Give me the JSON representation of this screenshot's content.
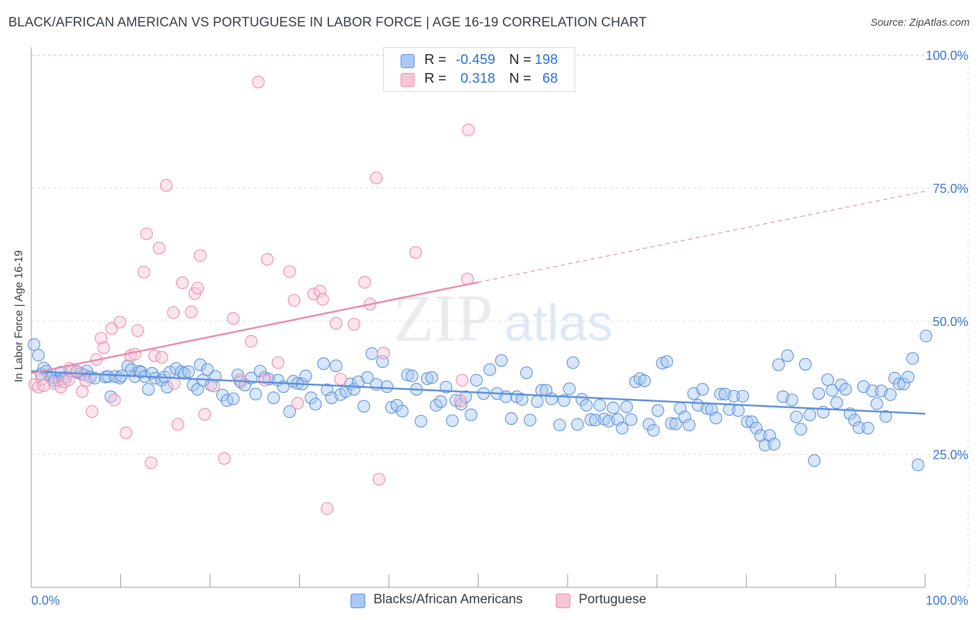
{
  "title": "BLACK/AFRICAN AMERICAN VS PORTUGUESE IN LABOR FORCE | AGE 16-19 CORRELATION CHART",
  "source": "Source: ZipAtlas.com",
  "watermark": {
    "zip": "ZIP",
    "atlas": "atlas"
  },
  "stats": [
    {
      "r_label": "R =",
      "r_value": "-0.459",
      "n_label": "N =",
      "n_value": "198",
      "color": "#5b8fd8"
    },
    {
      "r_label": "R =",
      "r_value": "0.318",
      "n_label": "N =",
      "n_value": "68",
      "color": "#e98aab"
    }
  ],
  "legend": [
    {
      "label": "Blacks/African Americans",
      "color": "#a9c8f5"
    },
    {
      "label": "Portuguese",
      "color": "#f8c5d6"
    }
  ],
  "chart_data": {
    "type": "scatter",
    "ylabel": "In Labor Force | Age 16-19",
    "xlim": [
      0,
      100
    ],
    "ylim": [
      0,
      105
    ],
    "x_tick_labels": {
      "left": "0.0%",
      "right": "100.0%"
    },
    "y_ticks": [
      {
        "value": 25,
        "label": "25.0%"
      },
      {
        "value": 50,
        "label": "50.0%"
      },
      {
        "value": 75,
        "label": "75.0%"
      },
      {
        "value": 100,
        "label": "100.0%"
      }
    ],
    "grid": "horizontal-dashed",
    "series": [
      {
        "name": "Blacks/African Americans",
        "color": "#5b8fd8",
        "fill": "#a9c8f5",
        "trend": {
          "x0": 0,
          "y0": 40.6,
          "x1": 100,
          "y1": 32.6
        },
        "points": [
          [
            0.3,
            45.6
          ],
          [
            0.8,
            43.6
          ],
          [
            1.1,
            40.1
          ],
          [
            1.4,
            41.2
          ],
          [
            1.7,
            40.6
          ],
          [
            2.1,
            39.5
          ],
          [
            2.3,
            39.4
          ],
          [
            2.6,
            38.8
          ],
          [
            3.1,
            38.9
          ],
          [
            3.3,
            40.4
          ],
          [
            3.5,
            39.1
          ],
          [
            3.9,
            39.5
          ],
          [
            4.5,
            40.6
          ],
          [
            5.1,
            40.4
          ],
          [
            5.6,
            40.1
          ],
          [
            5.9,
            39.9
          ],
          [
            6.2,
            40.6
          ],
          [
            6.6,
            39.5
          ],
          [
            7.1,
            39.3
          ],
          [
            8.3,
            39.5
          ],
          [
            8.6,
            39.6
          ],
          [
            8.9,
            35.8
          ],
          [
            9.4,
            39.6
          ],
          [
            9.9,
            39.3
          ],
          [
            10.1,
            39.7
          ],
          [
            10.8,
            41.6
          ],
          [
            11.2,
            40.9
          ],
          [
            11.6,
            39.6
          ],
          [
            12.1,
            40.6
          ],
          [
            12.3,
            40.4
          ],
          [
            12.7,
            39.6
          ],
          [
            13.1,
            37.2
          ],
          [
            13.5,
            40.2
          ],
          [
            13.9,
            39.3
          ],
          [
            14.6,
            38.9
          ],
          [
            14.9,
            39.5
          ],
          [
            15.2,
            37.6
          ],
          [
            15.5,
            40.4
          ],
          [
            16.2,
            41.1
          ],
          [
            16.8,
            40.5
          ],
          [
            17.1,
            40.2
          ],
          [
            17.6,
            40.5
          ],
          [
            18.1,
            38.0
          ],
          [
            18.6,
            37.2
          ],
          [
            18.9,
            41.8
          ],
          [
            19.2,
            38.9
          ],
          [
            19.7,
            40.9
          ],
          [
            20.1,
            38.0
          ],
          [
            20.6,
            39.6
          ],
          [
            21.4,
            36.1
          ],
          [
            21.9,
            35.1
          ],
          [
            22.6,
            35.4
          ],
          [
            23.1,
            39.9
          ],
          [
            23.4,
            38.6
          ],
          [
            23.9,
            38.0
          ],
          [
            24.6,
            39.3
          ],
          [
            25.1,
            36.3
          ],
          [
            25.6,
            40.6
          ],
          [
            26.1,
            39.4
          ],
          [
            26.6,
            39.1
          ],
          [
            27.1,
            35.6
          ],
          [
            27.6,
            38.9
          ],
          [
            28.2,
            37.7
          ],
          [
            28.9,
            33.0
          ],
          [
            29.3,
            38.7
          ],
          [
            29.8,
            38.3
          ],
          [
            30.3,
            38.2
          ],
          [
            30.7,
            39.7
          ],
          [
            31.3,
            35.6
          ],
          [
            31.8,
            34.4
          ],
          [
            32.7,
            42.0
          ],
          [
            33.1,
            37.1
          ],
          [
            33.6,
            35.6
          ],
          [
            34.1,
            41.6
          ],
          [
            34.6,
            36.2
          ],
          [
            35.2,
            36.8
          ],
          [
            35.7,
            38.2
          ],
          [
            36.1,
            37.2
          ],
          [
            36.6,
            38.6
          ],
          [
            37.2,
            34.0
          ],
          [
            37.6,
            39.4
          ],
          [
            38.1,
            43.9
          ],
          [
            38.6,
            38.1
          ],
          [
            39.3,
            42.4
          ],
          [
            39.8,
            37.7
          ],
          [
            40.3,
            33.8
          ],
          [
            40.9,
            34.2
          ],
          [
            41.5,
            33.1
          ],
          [
            42.1,
            39.9
          ],
          [
            42.6,
            39.7
          ],
          [
            43.1,
            37.2
          ],
          [
            43.6,
            31.2
          ],
          [
            44.3,
            39.2
          ],
          [
            44.8,
            39.4
          ],
          [
            45.3,
            34.2
          ],
          [
            45.8,
            34.9
          ],
          [
            46.4,
            37.6
          ],
          [
            47.1,
            31.3
          ],
          [
            47.5,
            35.1
          ],
          [
            48.1,
            34.4
          ],
          [
            48.6,
            35.8
          ],
          [
            49.2,
            32.4
          ],
          [
            49.8,
            38.9
          ],
          [
            50.6,
            36.4
          ],
          [
            51.3,
            40.9
          ],
          [
            52.1,
            36.4
          ],
          [
            52.6,
            42.6
          ],
          [
            53.1,
            35.8
          ],
          [
            53.7,
            31.7
          ],
          [
            54.3,
            35.8
          ],
          [
            54.9,
            35.3
          ],
          [
            55.4,
            40.3
          ],
          [
            55.8,
            31.4
          ],
          [
            56.6,
            34.9
          ],
          [
            57.1,
            37.0
          ],
          [
            57.6,
            37.0
          ],
          [
            58.2,
            35.4
          ],
          [
            59.1,
            30.5
          ],
          [
            59.6,
            35.1
          ],
          [
            60.2,
            37.3
          ],
          [
            60.6,
            42.2
          ],
          [
            61.1,
            30.6
          ],
          [
            61.6,
            35.3
          ],
          [
            62.1,
            34.2
          ],
          [
            62.6,
            31.5
          ],
          [
            63.1,
            31.4
          ],
          [
            63.6,
            34.2
          ],
          [
            64.1,
            31.6
          ],
          [
            64.6,
            31.2
          ],
          [
            65.1,
            33.7
          ],
          [
            65.6,
            31.5
          ],
          [
            66.1,
            29.9
          ],
          [
            66.6,
            33.9
          ],
          [
            67.1,
            31.5
          ],
          [
            67.6,
            38.6
          ],
          [
            68.1,
            39.2
          ],
          [
            68.6,
            38.8
          ],
          [
            69.1,
            30.6
          ],
          [
            69.6,
            29.5
          ],
          [
            70.1,
            33.2
          ],
          [
            70.6,
            42.1
          ],
          [
            71.1,
            42.4
          ],
          [
            71.6,
            30.8
          ],
          [
            72.1,
            30.7
          ],
          [
            72.6,
            33.6
          ],
          [
            73.1,
            32.0
          ],
          [
            73.6,
            30.5
          ],
          [
            74.1,
            36.4
          ],
          [
            74.6,
            34.2
          ],
          [
            75.1,
            37.2
          ],
          [
            75.6,
            33.6
          ],
          [
            76.1,
            33.4
          ],
          [
            76.6,
            31.8
          ],
          [
            77.1,
            36.3
          ],
          [
            77.6,
            36.3
          ],
          [
            78.1,
            33.4
          ],
          [
            78.6,
            35.9
          ],
          [
            79.1,
            33.2
          ],
          [
            79.6,
            35.9
          ],
          [
            80.1,
            31.1
          ],
          [
            80.6,
            31.1
          ],
          [
            81.1,
            29.9
          ],
          [
            81.6,
            28.5
          ],
          [
            82.1,
            26.7
          ],
          [
            82.6,
            28.5
          ],
          [
            83.1,
            26.9
          ],
          [
            83.6,
            41.8
          ],
          [
            84.1,
            35.8
          ],
          [
            84.6,
            43.5
          ],
          [
            85.1,
            35.2
          ],
          [
            85.6,
            32.0
          ],
          [
            86.1,
            29.7
          ],
          [
            86.6,
            41.9
          ],
          [
            87.1,
            32.4
          ],
          [
            87.6,
            23.8
          ],
          [
            88.1,
            36.4
          ],
          [
            88.6,
            32.9
          ],
          [
            89.1,
            39.0
          ],
          [
            89.6,
            37.0
          ],
          [
            90.1,
            34.7
          ],
          [
            90.6,
            38.0
          ],
          [
            91.1,
            37.2
          ],
          [
            91.6,
            32.6
          ],
          [
            92.1,
            31.4
          ],
          [
            92.6,
            30.0
          ],
          [
            93.1,
            37.7
          ],
          [
            93.6,
            29.9
          ],
          [
            94.1,
            36.9
          ],
          [
            94.6,
            34.5
          ],
          [
            95.1,
            36.9
          ],
          [
            95.6,
            32.1
          ],
          [
            96.1,
            36.2
          ],
          [
            96.6,
            39.3
          ],
          [
            97.1,
            38.2
          ],
          [
            97.6,
            38.2
          ],
          [
            98.1,
            39.5
          ],
          [
            98.6,
            43.0
          ],
          [
            99.2,
            23.0
          ],
          [
            100.1,
            47.2
          ]
        ]
      },
      {
        "name": "Portuguese",
        "color": "#e98aab",
        "fill": "#f8c5d6",
        "trend": {
          "x0": 0,
          "y0": 40.2,
          "x1": 100,
          "y1": 74.4,
          "solid_until": 50
        },
        "points": [
          [
            0.4,
            38.1
          ],
          [
            0.8,
            37.6
          ],
          [
            1.2,
            39.1
          ],
          [
            1.4,
            37.9
          ],
          [
            2.6,
            38.3
          ],
          [
            3.3,
            37.6
          ],
          [
            3.7,
            38.6
          ],
          [
            4.2,
            39.0
          ],
          [
            4.3,
            41.1
          ],
          [
            5.1,
            40.6
          ],
          [
            5.7,
            36.8
          ],
          [
            6.1,
            38.8
          ],
          [
            6.8,
            33.0
          ],
          [
            7.3,
            42.8
          ],
          [
            7.8,
            46.8
          ],
          [
            8.1,
            45.0
          ],
          [
            9.0,
            48.6
          ],
          [
            9.3,
            35.2
          ],
          [
            9.9,
            49.8
          ],
          [
            10.6,
            29.0
          ],
          [
            11.1,
            43.5
          ],
          [
            11.6,
            43.8
          ],
          [
            11.9,
            48.2
          ],
          [
            12.6,
            59.2
          ],
          [
            12.9,
            66.4
          ],
          [
            13.4,
            23.4
          ],
          [
            13.8,
            43.5
          ],
          [
            14.3,
            63.7
          ],
          [
            14.6,
            43.2
          ],
          [
            15.1,
            75.5
          ],
          [
            15.9,
            51.6
          ],
          [
            16.4,
            30.6
          ],
          [
            16.9,
            57.2
          ],
          [
            17.9,
            51.7
          ],
          [
            18.3,
            55.2
          ],
          [
            18.6,
            56.2
          ],
          [
            18.9,
            62.3
          ],
          [
            19.4,
            32.5
          ],
          [
            20.4,
            37.8
          ],
          [
            21.6,
            24.2
          ],
          [
            22.6,
            50.5
          ],
          [
            23.4,
            39.0
          ],
          [
            24.6,
            46.2
          ],
          [
            25.4,
            94.9
          ],
          [
            26.1,
            38.9
          ],
          [
            26.4,
            61.6
          ],
          [
            27.6,
            42.2
          ],
          [
            28.9,
            59.3
          ],
          [
            29.4,
            53.9
          ],
          [
            29.8,
            34.6
          ],
          [
            31.6,
            55.1
          ],
          [
            32.3,
            55.6
          ],
          [
            32.6,
            54.1
          ],
          [
            33.1,
            14.8
          ],
          [
            34.1,
            49.6
          ],
          [
            34.6,
            39.1
          ],
          [
            36.1,
            49.4
          ],
          [
            37.3,
            57.3
          ],
          [
            37.9,
            53.2
          ],
          [
            38.6,
            76.9
          ],
          [
            38.9,
            20.3
          ],
          [
            39.4,
            44.0
          ],
          [
            43.0,
            62.9
          ],
          [
            48.0,
            35.0
          ],
          [
            48.2,
            38.9
          ],
          [
            48.8,
            57.9
          ],
          [
            48.9,
            85.9
          ],
          [
            16.0,
            38.3
          ]
        ]
      }
    ]
  }
}
